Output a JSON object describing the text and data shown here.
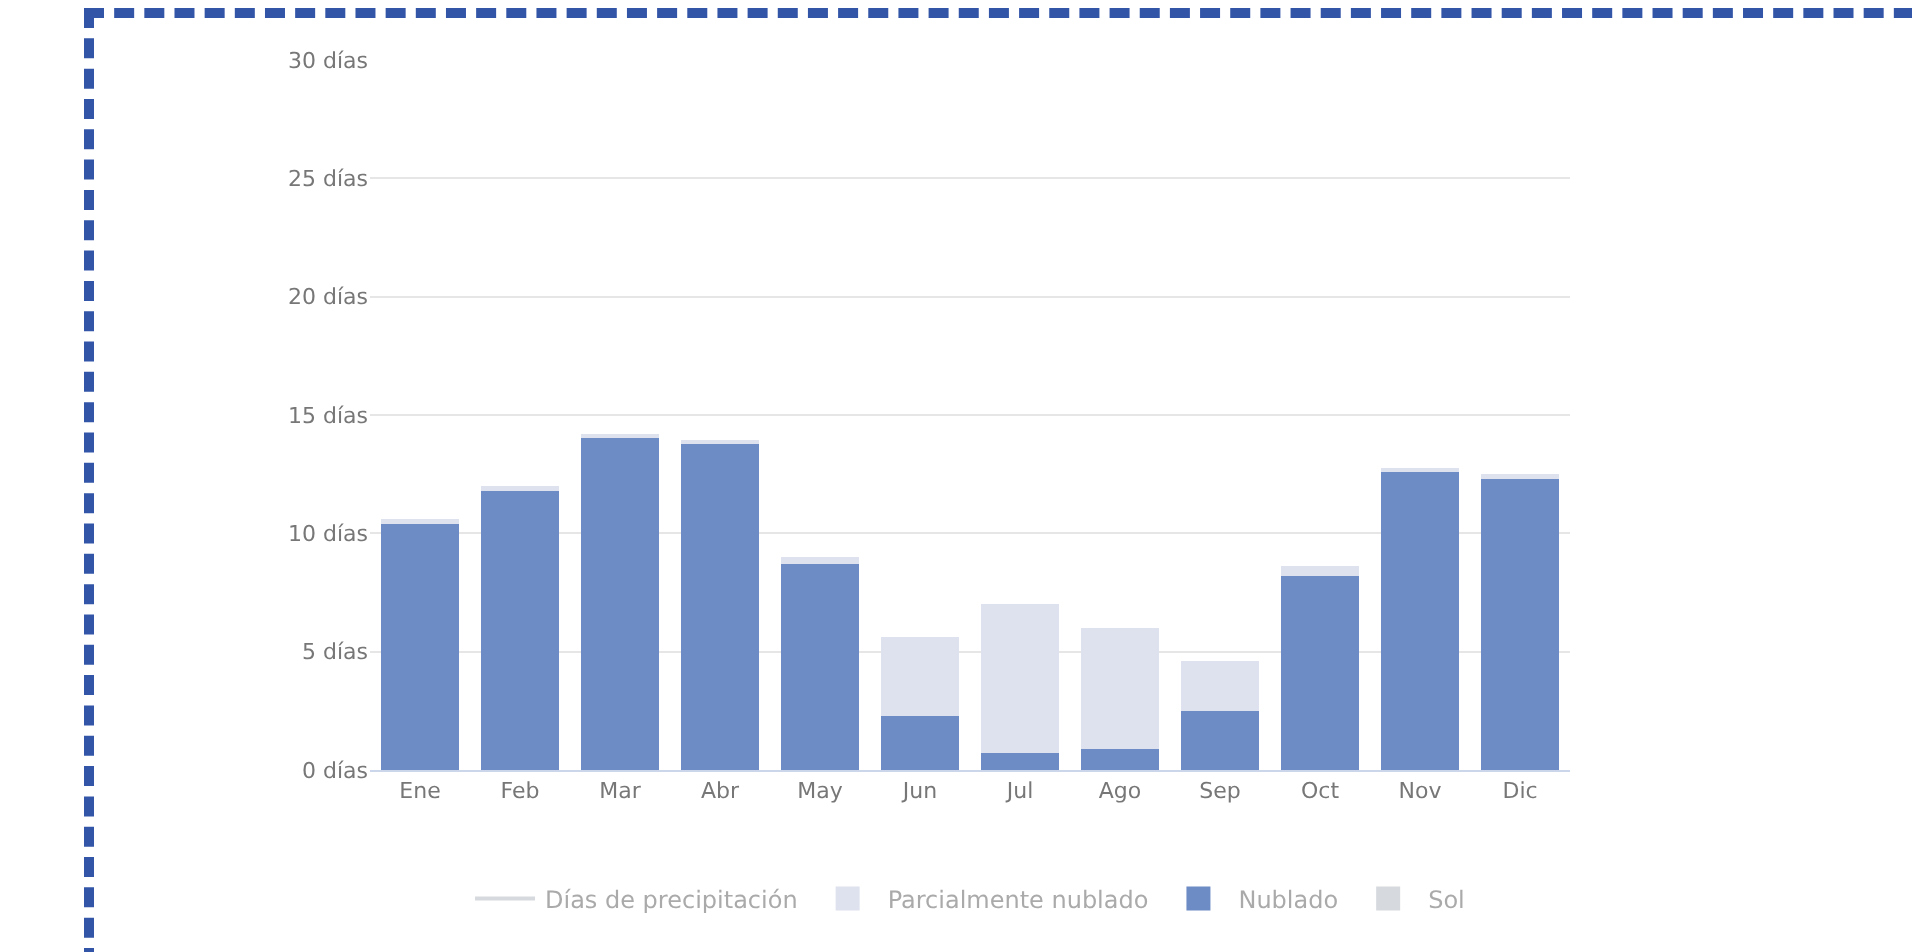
{
  "chart_data": {
    "type": "bar",
    "stacked": true,
    "categories": [
      "Ene",
      "Feb",
      "Mar",
      "Abr",
      "May",
      "Jun",
      "Jul",
      "Ago",
      "Sep",
      "Oct",
      "Nov",
      "Dic"
    ],
    "series": [
      {
        "name": "Sol",
        "color": "#d6d9de",
        "values": [
          null,
          null,
          null,
          null,
          null,
          null,
          null,
          null,
          null,
          null,
          null,
          null
        ]
      },
      {
        "name": "Nublado",
        "color": "#6d8bc4",
        "values": [
          10.4,
          11.8,
          14.1,
          13.8,
          8.7,
          2.3,
          0.7,
          0.9,
          2.5,
          8.2,
          12.6,
          12.3
        ]
      },
      {
        "name": "Parcialmente nublado",
        "color": "#dde2ee",
        "values": [
          0.2,
          0.2,
          0.1,
          0.1,
          0.3,
          3.3,
          6.3,
          5.1,
          2.1,
          0.4,
          0.1,
          0.2
        ]
      },
      {
        "name": "Días de precipitación",
        "type": "line",
        "color": "#d6d9de",
        "values": [
          null,
          null,
          null,
          null,
          null,
          null,
          null,
          null,
          null,
          null,
          null,
          null
        ]
      }
    ],
    "ylim": [
      0,
      30
    ],
    "yticks": [
      {
        "value": 0,
        "label": "0 días"
      },
      {
        "value": 5,
        "label": "5 días"
      },
      {
        "value": 10,
        "label": "10 días"
      },
      {
        "value": 15,
        "label": "15 días"
      },
      {
        "value": 20,
        "label": "20 días"
      },
      {
        "value": 25,
        "label": "25 días"
      },
      {
        "value": 30,
        "label": "30 días"
      }
    ],
    "grid": "y",
    "legend": "bottom"
  }
}
